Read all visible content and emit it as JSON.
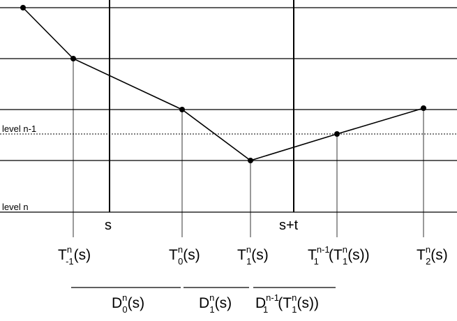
{
  "side_labels": {
    "level_upper": "level n-1",
    "level_lower": "level n"
  },
  "time_labels": {
    "s": "s",
    "s_plus_t": "s+t"
  },
  "point_labels": [
    {
      "base": "T",
      "sup": "n",
      "sub": "-1",
      "tail": "(s)"
    },
    {
      "base": "T",
      "sup": "n",
      "sub": "0",
      "tail": "(s)"
    },
    {
      "base": "T",
      "sup": "n",
      "sub": "1",
      "tail": "(s)"
    },
    {
      "base": "T",
      "sup": "n-1",
      "sub": "1",
      "tail": "(T",
      "sup2": "n",
      "sub2": "1",
      "tail2": "(s))"
    },
    {
      "base": "T",
      "sup": "n",
      "sub": "2",
      "tail": "(s)"
    }
  ],
  "interval_labels": [
    {
      "base": "D",
      "sup": "n",
      "sub": "0",
      "tail": "(s)"
    },
    {
      "base": "D",
      "sup": "n",
      "sub": "1",
      "tail": "(s)"
    },
    {
      "base": "D",
      "sup": "n-1",
      "sub": "1",
      "tail": "(T",
      "sup2": "n",
      "sub2": "1",
      "tail2": "(s))"
    }
  ]
}
